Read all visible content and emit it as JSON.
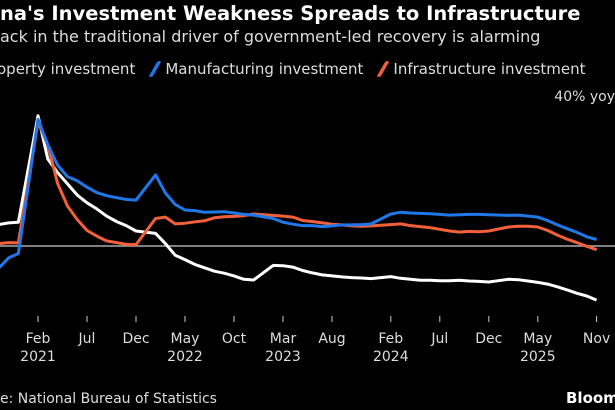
{
  "title": "na's Investment Weakness Spreads to Infrastructure",
  "subtitle": "ack in the traditional driver of government-led recovery is alarming",
  "source": "e: National Bureau of Statistics",
  "brand": "Bloom",
  "chart_data": {
    "type": "line",
    "title": "na's Investment Weakness Spreads to Infrastructure",
    "unit_label": "40% yoy",
    "ylim": [
      -18,
      42
    ],
    "grid": "zero line only",
    "legend_position": "top",
    "x_ticks": [
      {
        "date": "2021-02",
        "month": "Feb",
        "year": "2021"
      },
      {
        "date": "2021-07",
        "month": "Jul",
        "year": ""
      },
      {
        "date": "2021-12",
        "month": "Dec",
        "year": ""
      },
      {
        "date": "2022-05",
        "month": "May",
        "year": "2022"
      },
      {
        "date": "2022-10",
        "month": "Oct",
        "year": ""
      },
      {
        "date": "2023-03",
        "month": "Mar",
        "year": "2023"
      },
      {
        "date": "2023-08",
        "month": "Aug",
        "year": ""
      },
      {
        "date": "2024-02",
        "month": "Feb",
        "year": "2024"
      },
      {
        "date": "2024-07",
        "month": "Jul",
        "year": ""
      },
      {
        "date": "2024-12",
        "month": "Dec",
        "year": ""
      },
      {
        "date": "2025-05",
        "month": "May",
        "year": "2025"
      },
      {
        "date": "2025-11",
        "month": "Nov",
        "year": ""
      }
    ],
    "x": [
      "2020-10",
      "2020-11",
      "2020-12",
      "2021-02",
      "2021-03",
      "2021-04",
      "2021-05",
      "2021-06",
      "2021-07",
      "2021-08",
      "2021-09",
      "2021-10",
      "2021-11",
      "2021-12",
      "2022-02",
      "2022-03",
      "2022-04",
      "2022-05",
      "2022-06",
      "2022-07",
      "2022-08",
      "2022-09",
      "2022-10",
      "2022-11",
      "2022-12",
      "2023-02",
      "2023-03",
      "2023-04",
      "2023-05",
      "2023-06",
      "2023-07",
      "2023-08",
      "2023-09",
      "2023-10",
      "2023-11",
      "2023-12",
      "2024-02",
      "2024-03",
      "2024-04",
      "2024-05",
      "2024-06",
      "2024-07",
      "2024-08",
      "2024-09",
      "2024-10",
      "2024-11",
      "2024-12",
      "2025-02",
      "2025-03",
      "2025-04",
      "2025-05",
      "2025-06",
      "2025-07",
      "2025-08",
      "2025-09",
      "2025-10",
      "2025-11"
    ],
    "series": [
      {
        "name": "operty investment",
        "color": "#ffffff",
        "values": [
          6.3,
          6.8,
          7.0,
          38.3,
          25.6,
          21.6,
          18.3,
          15.0,
          12.7,
          10.9,
          8.8,
          7.2,
          6.0,
          4.4,
          3.7,
          0.7,
          -2.7,
          -4.0,
          -5.4,
          -6.4,
          -7.4,
          -8.0,
          -8.8,
          -9.8,
          -10.0,
          -5.7,
          -5.8,
          -6.2,
          -7.2,
          -7.9,
          -8.5,
          -8.8,
          -9.1,
          -9.3,
          -9.4,
          -9.6,
          -9.0,
          -9.5,
          -9.8,
          -10.1,
          -10.1,
          -10.2,
          -10.2,
          -10.1,
          -10.3,
          -10.4,
          -10.6,
          -9.8,
          -9.9,
          -10.3,
          -10.7,
          -11.2,
          -12.0,
          -12.9,
          -13.9,
          -14.7,
          -15.9
        ]
      },
      {
        "name": "Manufacturing investment",
        "color": "#1f78e8",
        "values": [
          -6.5,
          -3.5,
          -2.2,
          37.3,
          29.8,
          23.8,
          20.4,
          19.2,
          17.3,
          15.7,
          14.8,
          14.2,
          13.7,
          13.5,
          20.9,
          15.6,
          12.2,
          10.6,
          10.4,
          9.9,
          10.0,
          10.1,
          9.7,
          9.3,
          9.1,
          8.1,
          7.0,
          6.4,
          6.0,
          6.0,
          5.7,
          5.9,
          6.2,
          6.2,
          6.3,
          6.5,
          9.4,
          9.9,
          9.7,
          9.6,
          9.5,
          9.3,
          9.1,
          9.2,
          9.3,
          9.3,
          9.2,
          9.0,
          9.1,
          8.8,
          8.5,
          7.5,
          6.2,
          5.1,
          4.0,
          2.7,
          1.9
        ]
      },
      {
        "name": "Infrastructure investment",
        "color": "#f2603a",
        "values": [
          0.7,
          1.0,
          0.9,
          36.6,
          29.7,
          18.4,
          11.8,
          7.8,
          4.6,
          2.9,
          1.5,
          1.0,
          0.5,
          0.4,
          8.1,
          8.5,
          6.5,
          6.7,
          7.1,
          7.4,
          8.3,
          8.6,
          8.7,
          8.9,
          9.4,
          9.0,
          8.8,
          8.5,
          7.5,
          7.2,
          6.8,
          6.4,
          6.2,
          5.9,
          5.8,
          5.9,
          6.3,
          6.5,
          6.0,
          5.7,
          5.4,
          4.9,
          4.4,
          4.1,
          4.3,
          4.2,
          4.4,
          5.6,
          5.8,
          5.8,
          5.6,
          4.6,
          3.2,
          2.0,
          1.0,
          -0.1,
          -1.1
        ]
      }
    ]
  }
}
